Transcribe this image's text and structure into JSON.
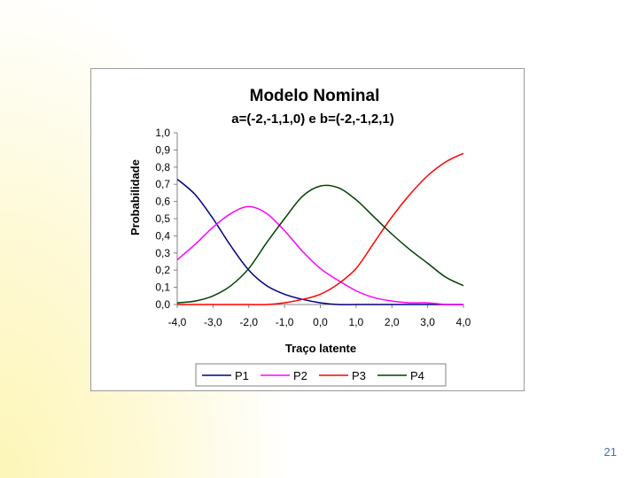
{
  "slide": {
    "page_number": "21"
  },
  "chart_data": {
    "type": "line",
    "title": "Modelo Nominal",
    "subtitle": "a=(-2,-1,1,0) e b=(-2,-1,2,1)",
    "xlabel": "Traço latente",
    "ylabel": "Probabilidade",
    "xlim": [
      -4,
      4
    ],
    "ylim": [
      0,
      1
    ],
    "x_ticks": [
      "-4,0",
      "-3,0",
      "-2,0",
      "-1,0",
      "0,0",
      "1,0",
      "2,0",
      "3,0",
      "4,0"
    ],
    "y_ticks": [
      "0,0",
      "0,1",
      "0,2",
      "0,3",
      "0,4",
      "0,5",
      "0,6",
      "0,7",
      "0,8",
      "0,9",
      "1,0"
    ],
    "grid": false,
    "legend_position": "bottom",
    "x": [
      -4.0,
      -3.5,
      -3.0,
      -2.5,
      -2.0,
      -1.5,
      -1.0,
      -0.5,
      0.0,
      0.5,
      1.0,
      1.5,
      2.0,
      2.5,
      3.0,
      3.5,
      4.0
    ],
    "series": [
      {
        "name": "P1",
        "color": "#000080",
        "values": [
          0.73,
          0.64,
          0.5,
          0.34,
          0.2,
          0.11,
          0.06,
          0.03,
          0.01,
          0.0,
          0.0,
          0.0,
          0.0,
          0.0,
          0.0,
          0.0,
          0.0
        ]
      },
      {
        "name": "P2",
        "color": "#ff00ff",
        "values": [
          0.26,
          0.35,
          0.45,
          0.53,
          0.57,
          0.53,
          0.43,
          0.31,
          0.21,
          0.14,
          0.08,
          0.04,
          0.02,
          0.01,
          0.01,
          0.0,
          0.0
        ]
      },
      {
        "name": "P3",
        "color": "#ff0000",
        "values": [
          0.0,
          0.0,
          0.0,
          0.0,
          0.0,
          0.0,
          0.01,
          0.03,
          0.06,
          0.12,
          0.21,
          0.36,
          0.51,
          0.64,
          0.75,
          0.83,
          0.88
        ]
      },
      {
        "name": "P4",
        "color": "#004000",
        "values": [
          0.01,
          0.02,
          0.05,
          0.11,
          0.21,
          0.36,
          0.5,
          0.63,
          0.69,
          0.68,
          0.61,
          0.51,
          0.41,
          0.32,
          0.24,
          0.16,
          0.11
        ]
      }
    ]
  }
}
